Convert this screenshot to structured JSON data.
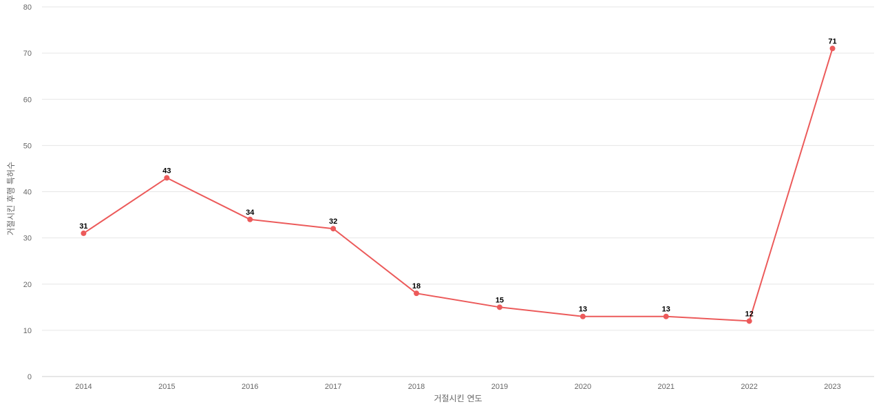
{
  "chart_data": {
    "type": "line",
    "title": "",
    "xlabel": "거절시킨 연도",
    "ylabel": "거절시킨 후행 특허수",
    "categories": [
      "2014",
      "2015",
      "2016",
      "2017",
      "2018",
      "2019",
      "2020",
      "2021",
      "2022",
      "2023"
    ],
    "series": [
      {
        "values": [
          31,
          43,
          34,
          32,
          18,
          15,
          13,
          13,
          12,
          71
        ],
        "color": "#ec5a5a"
      }
    ],
    "ylim": [
      0,
      80
    ],
    "yticks": [
      0,
      10,
      20,
      30,
      40,
      50,
      60,
      70,
      80
    ],
    "grid": true,
    "legend": "none",
    "data_labels": true
  }
}
